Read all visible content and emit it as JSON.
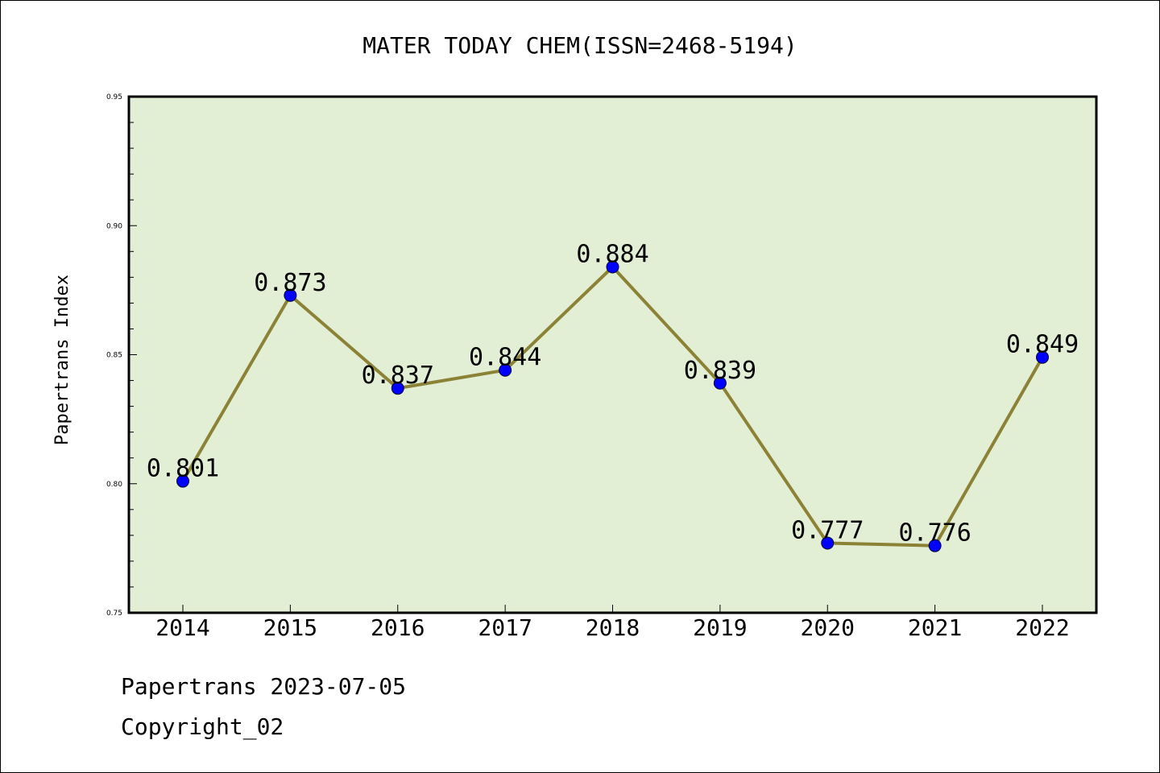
{
  "chart_data": {
    "type": "line",
    "title": "MATER TODAY CHEM(ISSN=2468-5194)",
    "xlabel": "",
    "ylabel": "Papertrans Index",
    "categories": [
      "2014",
      "2015",
      "2016",
      "2017",
      "2018",
      "2019",
      "2020",
      "2021",
      "2022"
    ],
    "series": [
      {
        "values": [
          0.801,
          0.873,
          0.837,
          0.844,
          0.884,
          0.839,
          0.777,
          0.776,
          0.849
        ],
        "data_labels": [
          "0.801",
          "0.873",
          "0.837",
          "0.844",
          "0.884",
          "0.839",
          "0.777",
          "0.776",
          "0.849"
        ]
      }
    ],
    "ylim": [
      0.75,
      0.95
    ],
    "yticks": [
      "0.75",
      "0.80",
      "0.85",
      "0.90",
      "0.95"
    ],
    "grid": false,
    "legend": "none",
    "colors": {
      "plot_background": "#e2efd5",
      "line": "#8c8236",
      "marker": "#0000ff",
      "axis": "#000000"
    }
  },
  "footer": {
    "date_line": "Papertrans 2023-07-05",
    "copyright": "Copyright_02"
  }
}
